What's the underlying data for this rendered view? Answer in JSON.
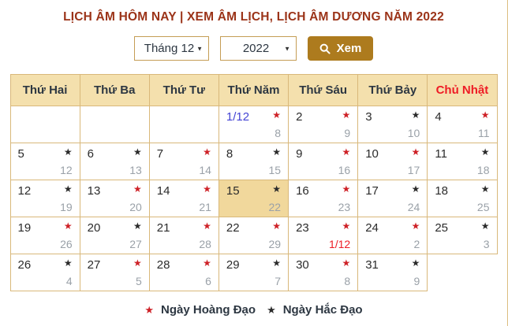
{
  "title": "LỊCH ÂM HÔM NAY | XEM ÂM LỊCH, LỊCH ÂM DƯƠNG NĂM 2022",
  "controls": {
    "month_select": {
      "value": "Tháng 12",
      "icon": "chevron-down-icon"
    },
    "year_select": {
      "value": "2022",
      "icon": "chevron-down-icon"
    },
    "view_button": {
      "label": "Xem",
      "icon": "search-icon"
    }
  },
  "calendar": {
    "month": "12",
    "year": "2022",
    "day_headers": [
      "Thứ Hai",
      "Thứ Ba",
      "Thứ Tư",
      "Thứ Năm",
      "Thứ Sáu",
      "Thứ Bảy",
      "Chủ Nhật"
    ],
    "rows": [
      {
        "cells": [
          null,
          null,
          null,
          {
            "solar": "1/12",
            "solar_color": "blue",
            "star": "red",
            "lunar": "8"
          },
          {
            "solar": "2",
            "star": "red",
            "lunar": "9"
          },
          {
            "solar": "3",
            "star": "black",
            "lunar": "10"
          },
          {
            "solar": "4",
            "star": "red",
            "lunar": "11"
          }
        ]
      },
      {
        "cells": [
          {
            "solar": "5",
            "star": "black",
            "lunar": "12"
          },
          {
            "solar": "6",
            "star": "black",
            "lunar": "13"
          },
          {
            "solar": "7",
            "star": "red",
            "lunar": "14"
          },
          {
            "solar": "8",
            "star": "black",
            "lunar": "15"
          },
          {
            "solar": "9",
            "star": "red",
            "lunar": "16"
          },
          {
            "solar": "10",
            "star": "red",
            "lunar": "17"
          },
          {
            "solar": "11",
            "star": "black",
            "lunar": "18"
          }
        ]
      },
      {
        "cells": [
          {
            "solar": "12",
            "star": "black",
            "lunar": "19"
          },
          {
            "solar": "13",
            "star": "red",
            "lunar": "20"
          },
          {
            "solar": "14",
            "star": "red",
            "lunar": "21"
          },
          {
            "solar": "15",
            "star": "black",
            "lunar": "22",
            "today": true
          },
          {
            "solar": "16",
            "star": "red",
            "lunar": "23"
          },
          {
            "solar": "17",
            "star": "black",
            "lunar": "24"
          },
          {
            "solar": "18",
            "star": "black",
            "lunar": "25"
          }
        ]
      },
      {
        "cells": [
          {
            "solar": "19",
            "star": "red",
            "lunar": "26"
          },
          {
            "solar": "20",
            "star": "black",
            "lunar": "27"
          },
          {
            "solar": "21",
            "star": "red",
            "lunar": "28"
          },
          {
            "solar": "22",
            "star": "red",
            "lunar": "29"
          },
          {
            "solar": "23",
            "star": "red",
            "lunar": "1/12",
            "lunar_color": "red"
          },
          {
            "solar": "24",
            "star": "red",
            "lunar": "2"
          },
          {
            "solar": "25",
            "star": "black",
            "lunar": "3"
          }
        ]
      },
      {
        "cells": [
          {
            "solar": "26",
            "star": "black",
            "lunar": "4"
          },
          {
            "solar": "27",
            "star": "red",
            "lunar": "5"
          },
          {
            "solar": "28",
            "star": "red",
            "lunar": "6"
          },
          {
            "solar": "29",
            "star": "black",
            "lunar": "7"
          },
          {
            "solar": "30",
            "star": "red",
            "lunar": "8"
          },
          {
            "solar": "31",
            "star": "black",
            "lunar": "9"
          },
          {
            "empty": true,
            "no_border": true
          }
        ]
      }
    ]
  },
  "legend": [
    {
      "icon": "star-icon",
      "star": "red",
      "label": "Ngày Hoàng Đạo"
    },
    {
      "icon": "star-icon",
      "star": "black",
      "label": "Ngày Hắc Đạo"
    }
  ],
  "colors": {
    "title": "#9b3318",
    "table_border": "#d9b87a",
    "header_bg": "#f4e0ad",
    "today_bg": "#f1d89c",
    "header_text": "#2d3742",
    "sunday_red": "#ee1c25",
    "star_red": "#ce2127",
    "star_black": "#2b2b2b",
    "lunar_gray": "#9aa1a8",
    "link_blue": "#4444d4",
    "button_bg": "#ad7b1e",
    "select_border": "#c59d55"
  },
  "star_glyph": "★",
  "caret_glyph": "▼"
}
